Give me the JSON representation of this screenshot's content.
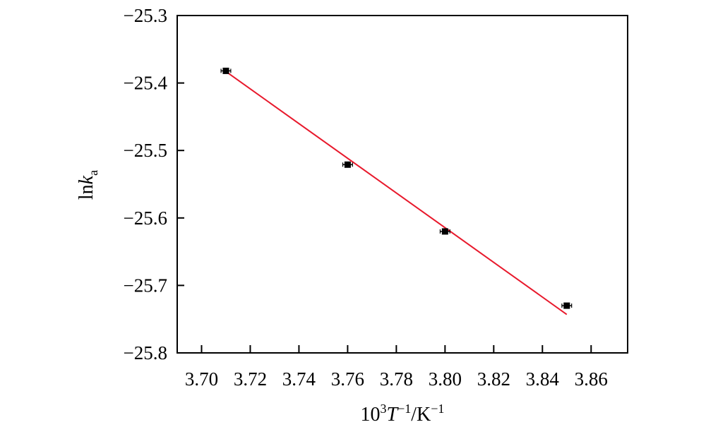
{
  "chart_data": {
    "type": "scatter",
    "title": "",
    "xlabel": {
      "prefix": "10",
      "prefix_sup": "3",
      "var": "T",
      "var_sup": "−1",
      "unit": "/K",
      "unit_sup": "−1"
    },
    "ylabel": {
      "prefix": "ln",
      "var": "k",
      "sub": "a"
    },
    "xlim": [
      3.69,
      3.875
    ],
    "ylim": [
      -25.8,
      -25.3
    ],
    "x_ticks": [
      3.7,
      3.72,
      3.74,
      3.76,
      3.78,
      3.8,
      3.82,
      3.84,
      3.86
    ],
    "x_tick_labels": [
      "3.70",
      "3.72",
      "3.74",
      "3.76",
      "3.78",
      "3.80",
      "3.82",
      "3.84",
      "3.86"
    ],
    "y_ticks": [
      -25.3,
      -25.4,
      -25.5,
      -25.6,
      -25.7,
      -25.8
    ],
    "y_tick_labels": [
      "−25.3",
      "−25.4",
      "−25.5",
      "−25.6",
      "−25.7",
      "−25.8"
    ],
    "grid": false,
    "legend": null,
    "series": [
      {
        "type": "scatter",
        "marker": "square",
        "color": "#000000",
        "x": [
          3.71,
          3.76,
          3.8,
          3.85
        ],
        "y": [
          -25.382,
          -25.521,
          -25.62,
          -25.73
        ],
        "x_error": 0.002
      },
      {
        "type": "line",
        "color": "#e8192c",
        "x": [
          3.71,
          3.85
        ],
        "y": [
          -25.383,
          -25.743
        ]
      }
    ]
  }
}
